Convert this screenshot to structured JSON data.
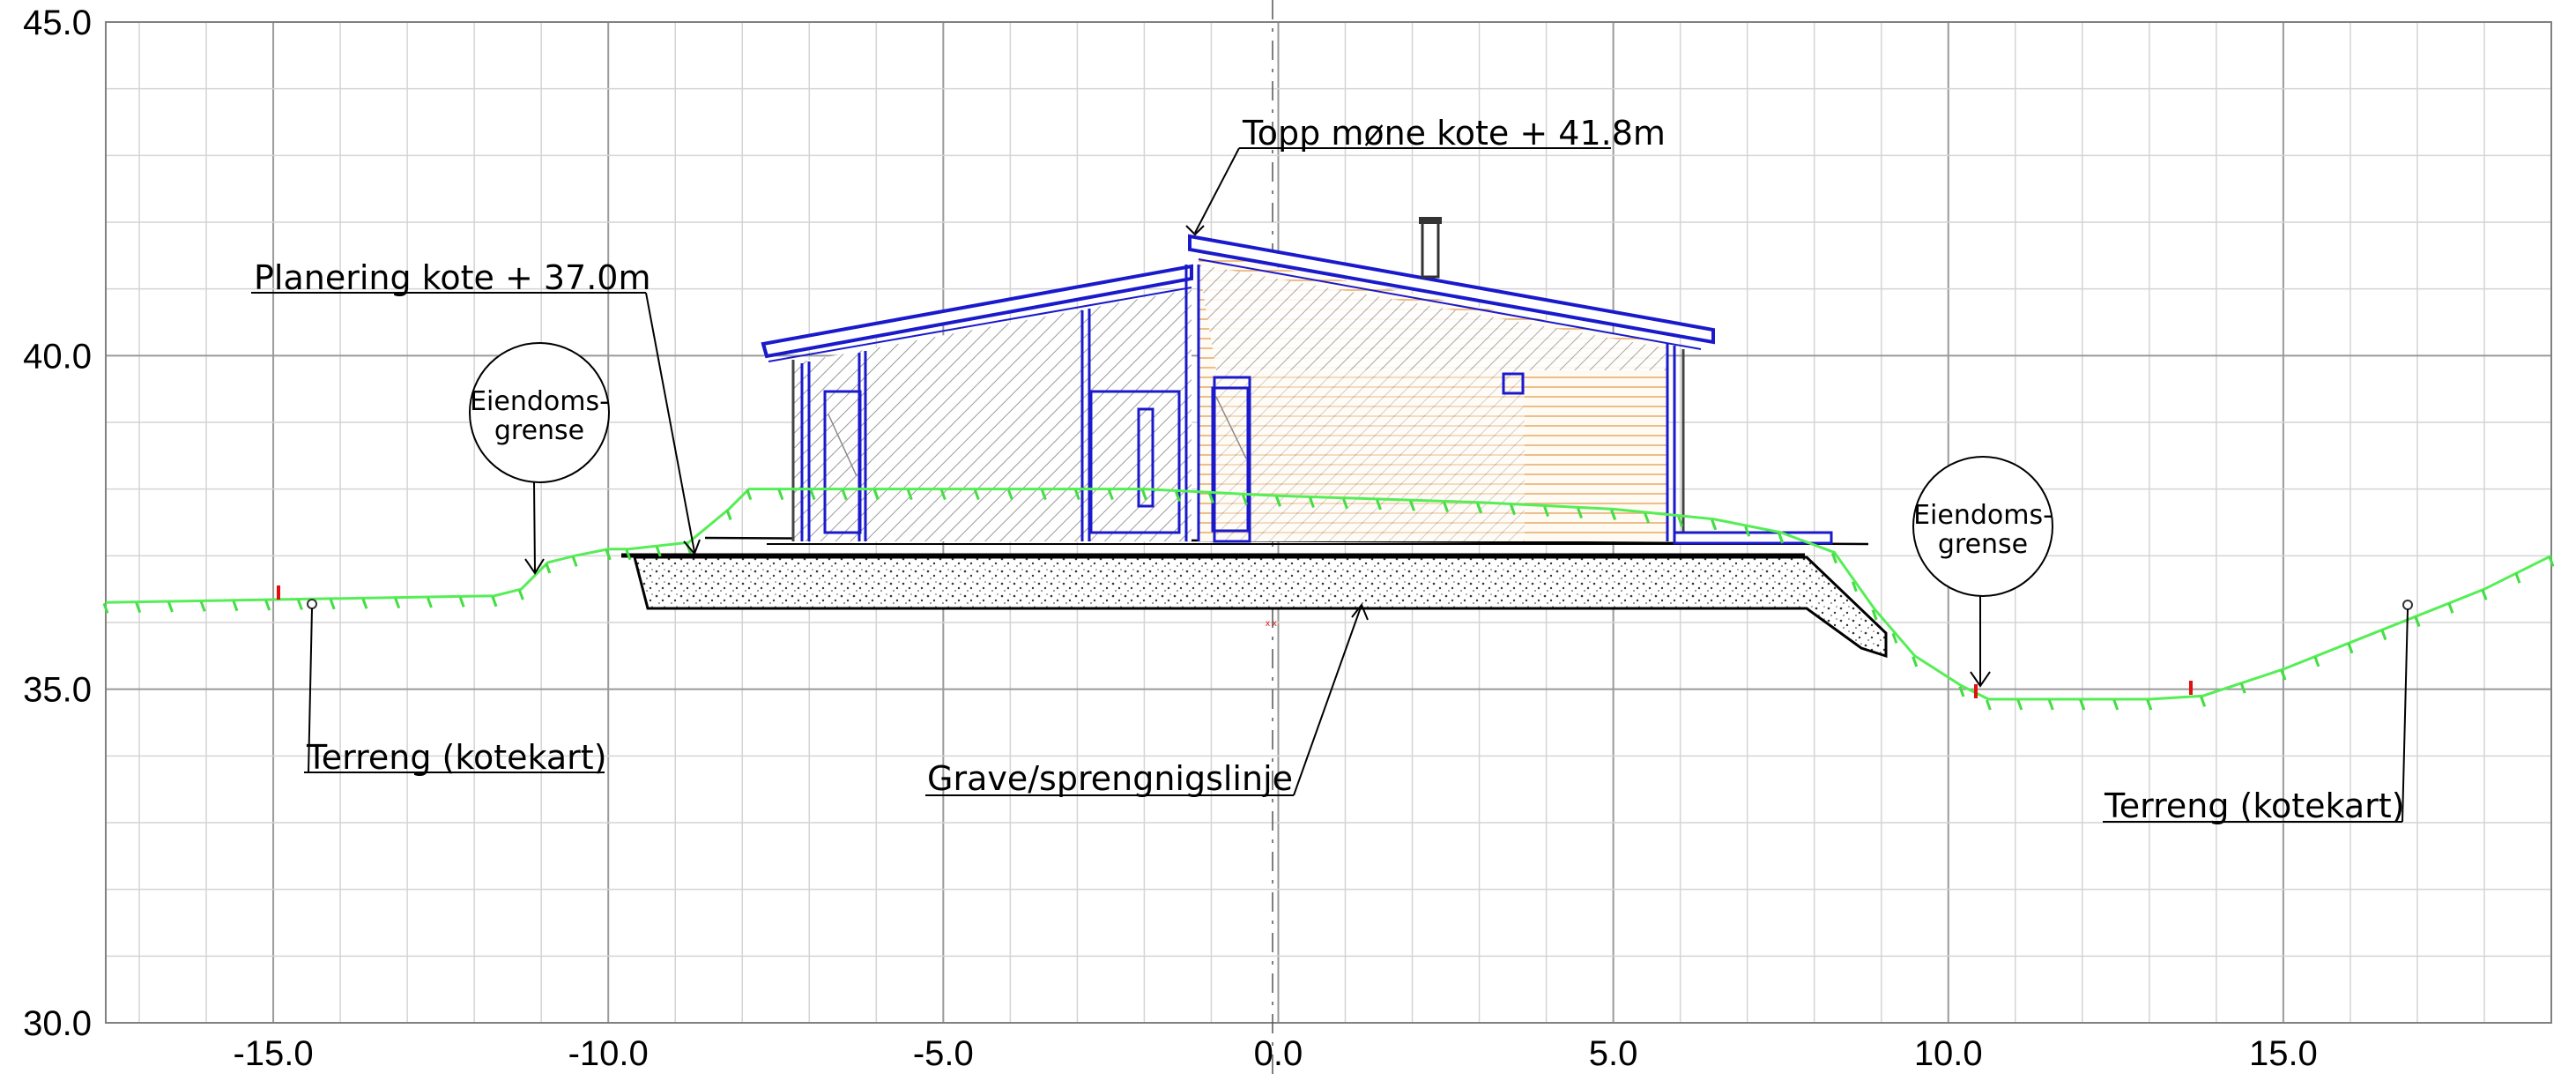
{
  "axes": {
    "x": {
      "min": -17.5,
      "max": 19.0,
      "minor_step": 1.0,
      "major_step": 5.0,
      "ticks": [
        {
          "value": -15,
          "label": "-15.0"
        },
        {
          "value": -10,
          "label": "-10.0"
        },
        {
          "value": -5,
          "label": "-5.0"
        },
        {
          "value": 0,
          "label": "0.0"
        },
        {
          "value": 5,
          "label": "5.0"
        },
        {
          "value": 10,
          "label": "10.0"
        },
        {
          "value": 15,
          "label": "15.0"
        }
      ]
    },
    "y": {
      "min": 30.0,
      "max": 45.0,
      "minor_step": 1.0,
      "major_step": 5.0,
      "ticks": [
        {
          "value": 30,
          "label": "30.0"
        },
        {
          "value": 35,
          "label": "35.0"
        },
        {
          "value": 40,
          "label": "40.0"
        },
        {
          "value": 45,
          "label": "45.0"
        }
      ]
    }
  },
  "annotations": {
    "roof_ridge": "Topp møne kote + 41.8m",
    "grading_level": "Planering kote + 37.0m",
    "terrain_left": "Terreng (kotekart)",
    "terrain_right": "Terreng (kotekart)",
    "excavation_line": "Grave/sprengnigslinje",
    "boundary_left": [
      "Eiendoms-",
      "grense"
    ],
    "boundary_right": [
      "Eiendoms-",
      "grense"
    ]
  },
  "colors": {
    "terrain": "#55ee55",
    "roof_outline": "#1a1acc",
    "wall_cladding": "#e8b070",
    "boundary_marker": "#e01010"
  },
  "terrain_profile": [
    [
      -17.5,
      36.3
    ],
    [
      -11.7,
      36.4
    ],
    [
      -11.3,
      36.5
    ],
    [
      -10.9,
      36.9
    ],
    [
      -10.5,
      37.0
    ],
    [
      -10.0,
      37.1
    ],
    [
      -9.7,
      37.1
    ],
    [
      -8.8,
      37.2
    ],
    [
      -8.2,
      37.7
    ],
    [
      -7.9,
      38.0
    ],
    [
      -6.0,
      38.0
    ],
    [
      -2.0,
      38.0
    ],
    [
      0.0,
      37.9
    ],
    [
      3.0,
      37.8
    ],
    [
      5.0,
      37.7
    ],
    [
      6.5,
      37.55
    ],
    [
      7.5,
      37.35
    ],
    [
      8.3,
      37.05
    ],
    [
      8.9,
      36.2
    ],
    [
      9.5,
      35.5
    ],
    [
      10.2,
      35.05
    ],
    [
      10.6,
      34.85
    ],
    [
      12.0,
      34.85
    ],
    [
      13.0,
      34.85
    ],
    [
      13.8,
      34.9
    ],
    [
      15.0,
      35.3
    ],
    [
      16.0,
      35.7
    ],
    [
      17.0,
      36.1
    ],
    [
      18.0,
      36.5
    ],
    [
      19.0,
      37.0
    ]
  ],
  "structures": {
    "grading_level": 37.0,
    "roof_ridge_level": 41.8,
    "slab_top": 37.0,
    "slab_bottom": 36.35
  }
}
